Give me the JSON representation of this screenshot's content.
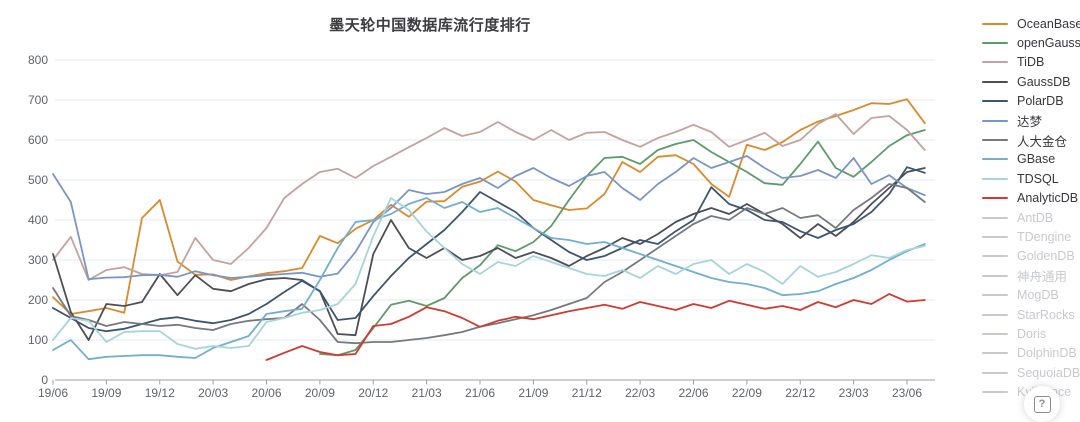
{
  "chart_data": {
    "type": "line",
    "title": "墨天轮中国数据库流行度排行",
    "xlabel": "",
    "ylabel": "",
    "ylim": [
      0,
      800
    ],
    "y_tick_step": 100,
    "grid": true,
    "legend_position": "right",
    "x_tick_interval": 3,
    "x": [
      "19/06",
      "19/07",
      "19/08",
      "19/09",
      "19/10",
      "19/11",
      "19/12",
      "20/01",
      "20/02",
      "20/03",
      "20/04",
      "20/05",
      "20/06",
      "20/07",
      "20/08",
      "20/09",
      "20/10",
      "20/11",
      "20/12",
      "21/01",
      "21/02",
      "21/03",
      "21/04",
      "21/05",
      "21/06",
      "21/07",
      "21/08",
      "21/09",
      "21/10",
      "21/11",
      "21/12",
      "22/01",
      "22/02",
      "22/03",
      "22/04",
      "22/05",
      "22/06",
      "22/07",
      "22/08",
      "22/09",
      "22/10",
      "22/11",
      "22/12",
      "23/01",
      "23/02",
      "23/03",
      "23/04",
      "23/05",
      "23/06",
      "23/07"
    ],
    "series": [
      {
        "name": "OceanBase",
        "color": "#d98b2b",
        "values": [
          207,
          165,
          172,
          180,
          168,
          405,
          450,
          296,
          263,
          264,
          250,
          259,
          267,
          272,
          280,
          360,
          342,
          378,
          400,
          438,
          408,
          446,
          447,
          483,
          496,
          521,
          496,
          450,
          437,
          425,
          429,
          465,
          545,
          520,
          558,
          562,
          540,
          490,
          458,
          588,
          575,
          595,
          625,
          646,
          660,
          675,
          692,
          690,
          702,
          642
        ]
      },
      {
        "name": "openGauss",
        "color": "#5d9b68",
        "values": [
          null,
          null,
          null,
          null,
          null,
          null,
          null,
          null,
          null,
          null,
          null,
          null,
          null,
          null,
          null,
          65,
          62,
          75,
          130,
          188,
          198,
          185,
          205,
          255,
          287,
          337,
          322,
          345,
          385,
          450,
          510,
          555,
          558,
          540,
          575,
          590,
          600,
          570,
          545,
          520,
          492,
          488,
          540,
          596,
          530,
          508,
          545,
          585,
          612,
          625
        ]
      },
      {
        "name": "TiDB",
        "color": "#c4a29e",
        "values": [
          300,
          358,
          250,
          275,
          282,
          265,
          262,
          270,
          355,
          300,
          290,
          330,
          380,
          455,
          490,
          520,
          528,
          505,
          535,
          558,
          582,
          605,
          630,
          610,
          620,
          645,
          620,
          600,
          625,
          600,
          618,
          620,
          600,
          583,
          605,
          620,
          638,
          620,
          583,
          600,
          618,
          585,
          600,
          640,
          665,
          615,
          655,
          660,
          625,
          575
        ]
      },
      {
        "name": "GaussDB",
        "color": "#4e4e56",
        "values": [
          315,
          170,
          100,
          190,
          185,
          195,
          265,
          212,
          262,
          228,
          222,
          240,
          252,
          255,
          250,
          222,
          115,
          112,
          315,
          400,
          330,
          305,
          330,
          300,
          310,
          330,
          305,
          320,
          305,
          285,
          310,
          330,
          355,
          340,
          365,
          395,
          415,
          430,
          415,
          440,
          415,
          390,
          355,
          390,
          360,
          395,
          440,
          480,
          520,
          530
        ]
      },
      {
        "name": "PolarDB",
        "color": "#3d566f",
        "values": [
          180,
          155,
          130,
          122,
          128,
          140,
          152,
          157,
          148,
          142,
          150,
          165,
          190,
          220,
          248,
          222,
          150,
          155,
          210,
          260,
          305,
          340,
          375,
          420,
          470,
          445,
          420,
          380,
          350,
          320,
          300,
          310,
          330,
          350,
          340,
          372,
          400,
          482,
          440,
          425,
          400,
          395,
          372,
          355,
          375,
          390,
          420,
          465,
          532,
          518
        ]
      },
      {
        "name": "达梦",
        "color": "#7b95c6",
        "values": [
          515,
          445,
          252,
          256,
          257,
          262,
          263,
          258,
          272,
          262,
          255,
          258,
          262,
          265,
          268,
          258,
          266,
          320,
          395,
          430,
          475,
          465,
          470,
          490,
          505,
          480,
          510,
          530,
          505,
          485,
          510,
          520,
          480,
          450,
          490,
          520,
          555,
          530,
          545,
          560,
          530,
          505,
          510,
          525,
          505,
          555,
          490,
          512,
          480,
          462
        ]
      },
      {
        "name": "人大金仓",
        "color": "#76797e",
        "values": [
          230,
          160,
          150,
          135,
          145,
          140,
          135,
          138,
          130,
          125,
          140,
          148,
          152,
          155,
          190,
          150,
          95,
          92,
          95,
          95,
          100,
          105,
          112,
          120,
          133,
          142,
          152,
          162,
          175,
          190,
          205,
          245,
          270,
          300,
          330,
          360,
          390,
          410,
          400,
          430,
          415,
          430,
          405,
          412,
          380,
          425,
          455,
          490,
          480,
          445
        ]
      },
      {
        "name": "GBase",
        "color": "#72aecd",
        "values": [
          75,
          100,
          52,
          58,
          60,
          62,
          62,
          58,
          55,
          80,
          95,
          110,
          165,
          172,
          178,
          250,
          330,
          395,
          400,
          415,
          440,
          455,
          430,
          445,
          420,
          430,
          405,
          380,
          355,
          350,
          340,
          345,
          330,
          315,
          300,
          285,
          270,
          255,
          245,
          240,
          230,
          212,
          215,
          222,
          240,
          255,
          275,
          300,
          322,
          340
        ]
      },
      {
        "name": "TDSQL",
        "color": "#a6d4da",
        "values": [
          100,
          155,
          148,
          95,
          120,
          122,
          122,
          90,
          78,
          85,
          80,
          85,
          145,
          155,
          168,
          175,
          190,
          240,
          360,
          455,
          425,
          371,
          330,
          290,
          265,
          295,
          285,
          310,
          295,
          280,
          265,
          260,
          275,
          255,
          285,
          265,
          290,
          300,
          265,
          290,
          270,
          240,
          285,
          258,
          270,
          290,
          312,
          305,
          325,
          335
        ]
      },
      {
        "name": "AnalyticDB",
        "color": "#d03a30",
        "values": [
          null,
          null,
          null,
          null,
          null,
          null,
          null,
          null,
          null,
          null,
          null,
          null,
          50,
          68,
          85,
          70,
          62,
          65,
          135,
          140,
          158,
          182,
          172,
          155,
          133,
          148,
          158,
          152,
          162,
          172,
          180,
          188,
          178,
          195,
          185,
          175,
          190,
          180,
          198,
          188,
          178,
          185,
          175,
          195,
          182,
          200,
          190,
          215,
          196,
          200
        ]
      }
    ],
    "legend_disabled": [
      "AntDB",
      "TDengine",
      "GoldenDB",
      "神舟通用",
      "MogDB",
      "StarRocks",
      "Doris",
      "DolphinDB",
      "SequoiaDB",
      "Kyligence"
    ]
  },
  "colors": {
    "grid": "#e3ebf3",
    "axis": "#9aa0a6",
    "tick_label": "#5f6368",
    "title": "#3b3b40",
    "disabled_legend": "#c7c9ce",
    "background": "#ffffff"
  },
  "layout_values": {
    "y_ticks": [
      0,
      100,
      200,
      300,
      400,
      500,
      600,
      700,
      800
    ]
  },
  "help": {
    "icon": "?",
    "label": "help"
  }
}
